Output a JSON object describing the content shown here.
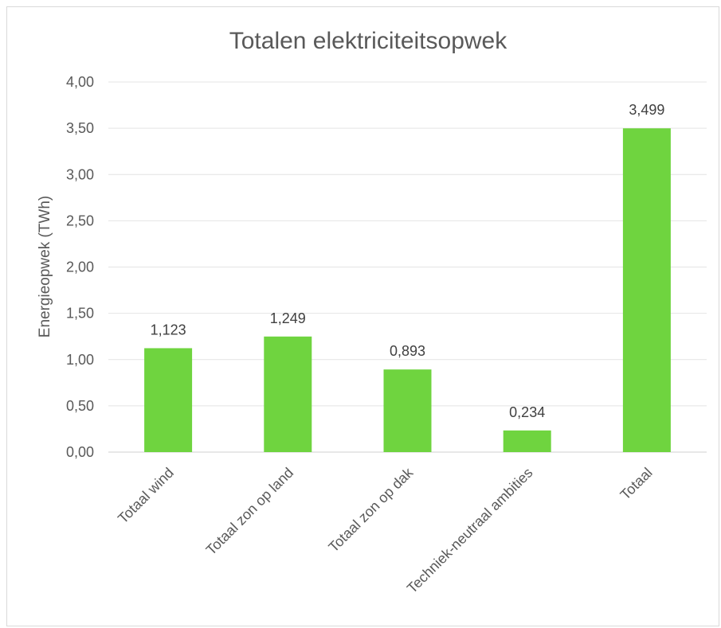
{
  "chart_data": {
    "type": "bar",
    "title": "Totalen elektriciteitsopwek",
    "xlabel": "",
    "ylabel": "Energieopwek (TWh)",
    "categories": [
      "Totaal wind",
      "Totaal zon op land",
      "Totaal zon op dak",
      "Techniek-neutraal ambities",
      "Totaal"
    ],
    "values": [
      1.123,
      1.249,
      0.893,
      0.234,
      3.499
    ],
    "data_labels": [
      "1,123",
      "1,249",
      "0,893",
      "0,234",
      "3,499"
    ],
    "yticks": [
      "0,00",
      "0,50",
      "1,00",
      "1,50",
      "2,00",
      "2,50",
      "3,00",
      "3,50",
      "4,00"
    ],
    "ylim": [
      0,
      4
    ],
    "grid": true,
    "bar_color": "#6fd43f",
    "legend": "none"
  }
}
